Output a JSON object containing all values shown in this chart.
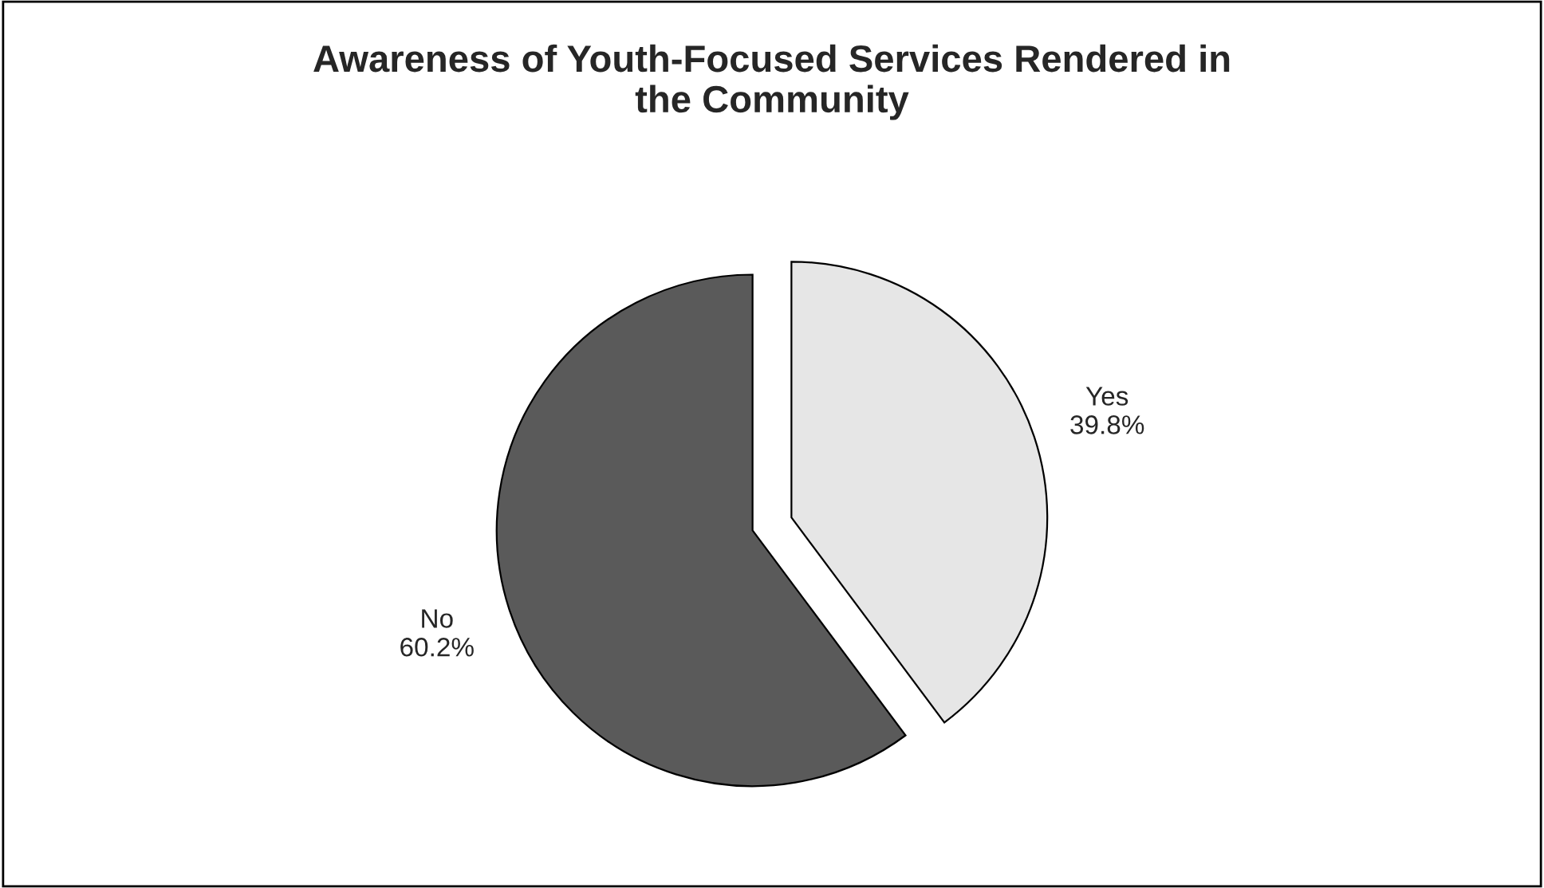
{
  "chart_data": {
    "type": "pie",
    "title": "Awareness of Youth-Focused Services Rendered in\nthe Community",
    "categories": [
      "Yes",
      "No"
    ],
    "values": [
      39.8,
      60.2
    ],
    "value_labels": [
      "39.8%",
      "60.2%"
    ],
    "colors": [
      "#e6e6e6",
      "#5a5a5a"
    ],
    "legend": false
  }
}
